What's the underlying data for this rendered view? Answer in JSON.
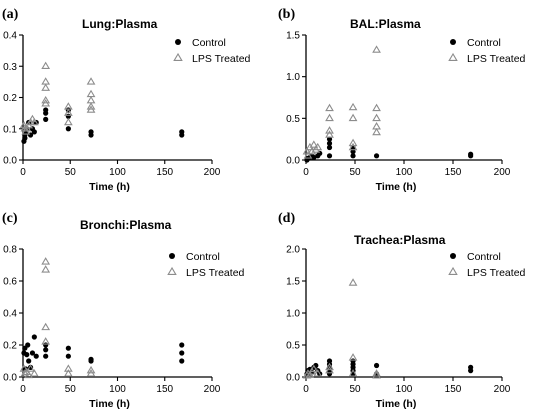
{
  "chart_data": [
    {
      "type": "scatter",
      "panel_letter": "(a)",
      "title": "Lung:Plasma",
      "xlabel": "Time (h)",
      "ylabel": "",
      "xlim": [
        0,
        200
      ],
      "ylim": [
        0,
        0.4
      ],
      "xticks": [
        0,
        50,
        100,
        150,
        200
      ],
      "yticks": [
        0.0,
        0.1,
        0.2,
        0.3,
        0.4
      ],
      "ytick_labels": [
        "0.0",
        "0.1",
        "0.2",
        "0.3",
        "0.4"
      ],
      "legend_position": "top-right",
      "series": [
        {
          "name": "Control",
          "marker": "filled-circle",
          "color": "#000000",
          "points": [
            [
              1,
              0.06
            ],
            [
              2,
              0.07
            ],
            [
              2,
              0.08
            ],
            [
              3,
              0.09
            ],
            [
              4,
              0.1
            ],
            [
              6,
              0.12
            ],
            [
              8,
              0.08
            ],
            [
              10,
              0.1
            ],
            [
              12,
              0.09
            ],
            [
              14,
              0.12
            ],
            [
              24,
              0.15
            ],
            [
              24,
              0.16
            ],
            [
              24,
              0.13
            ],
            [
              48,
              0.14
            ],
            [
              48,
              0.1
            ],
            [
              48,
              0.16
            ],
            [
              72,
              0.09
            ],
            [
              72,
              0.08
            ],
            [
              168,
              0.09
            ],
            [
              168,
              0.08
            ]
          ]
        },
        {
          "name": "LPS Treated",
          "marker": "open-triangle",
          "color": "#8c8c8c",
          "points": [
            [
              1,
              0.11
            ],
            [
              2,
              0.1
            ],
            [
              3,
              0.09
            ],
            [
              4,
              0.1
            ],
            [
              6,
              0.11
            ],
            [
              8,
              0.12
            ],
            [
              10,
              0.13
            ],
            [
              12,
              0.12
            ],
            [
              24,
              0.3
            ],
            [
              24,
              0.25
            ],
            [
              24,
              0.23
            ],
            [
              24,
              0.19
            ],
            [
              24,
              0.18
            ],
            [
              48,
              0.17
            ],
            [
              48,
              0.15
            ],
            [
              48,
              0.12
            ],
            [
              72,
              0.25
            ],
            [
              72,
              0.21
            ],
            [
              72,
              0.19
            ],
            [
              72,
              0.17
            ],
            [
              72,
              0.16
            ]
          ]
        }
      ]
    },
    {
      "type": "scatter",
      "panel_letter": "(b)",
      "title": "BAL:Plasma",
      "xlabel": "Time (h)",
      "ylabel": "",
      "xlim": [
        0,
        200
      ],
      "ylim": [
        0,
        1.5
      ],
      "xticks": [
        0,
        50,
        100,
        150,
        200
      ],
      "yticks": [
        0.0,
        0.5,
        1.0,
        1.5
      ],
      "ytick_labels": [
        "0.0",
        "0.5",
        "1.0",
        "1.5"
      ],
      "legend_position": "top-right",
      "series": [
        {
          "name": "Control",
          "marker": "filled-circle",
          "color": "#000000",
          "points": [
            [
              1,
              0.0
            ],
            [
              2,
              0.02
            ],
            [
              4,
              0.03
            ],
            [
              6,
              0.05
            ],
            [
              8,
              0.03
            ],
            [
              12,
              0.05
            ],
            [
              14,
              0.08
            ],
            [
              24,
              0.15
            ],
            [
              24,
              0.2
            ],
            [
              24,
              0.25
            ],
            [
              24,
              0.05
            ],
            [
              48,
              0.15
            ],
            [
              48,
              0.1
            ],
            [
              48,
              0.05
            ],
            [
              72,
              0.05
            ],
            [
              168,
              0.05
            ],
            [
              168,
              0.07
            ]
          ]
        },
        {
          "name": "LPS Treated",
          "marker": "open-triangle",
          "color": "#8c8c8c",
          "points": [
            [
              1,
              0.1
            ],
            [
              2,
              0.05
            ],
            [
              4,
              0.15
            ],
            [
              6,
              0.1
            ],
            [
              8,
              0.18
            ],
            [
              10,
              0.12
            ],
            [
              12,
              0.15
            ],
            [
              24,
              0.62
            ],
            [
              24,
              0.5
            ],
            [
              24,
              0.35
            ],
            [
              24,
              0.3
            ],
            [
              48,
              0.63
            ],
            [
              48,
              0.5
            ],
            [
              48,
              0.2
            ],
            [
              48,
              0.15
            ],
            [
              72,
              1.32
            ],
            [
              72,
              0.62
            ],
            [
              72,
              0.5
            ],
            [
              72,
              0.4
            ],
            [
              72,
              0.33
            ]
          ]
        }
      ]
    },
    {
      "type": "scatter",
      "panel_letter": "(c)",
      "title": "Bronchi:Plasma",
      "xlabel": "Time (h)",
      "ylabel": "",
      "xlim": [
        0,
        200
      ],
      "ylim": [
        0,
        0.8
      ],
      "xticks": [
        0,
        50,
        100,
        150,
        200
      ],
      "yticks": [
        0.0,
        0.2,
        0.4,
        0.6,
        0.8
      ],
      "ytick_labels": [
        "0.0",
        "0.2",
        "0.4",
        "0.6",
        "0.8"
      ],
      "legend_position": "top-right",
      "series": [
        {
          "name": "Control",
          "marker": "filled-circle",
          "color": "#000000",
          "points": [
            [
              1,
              0.15
            ],
            [
              2,
              0.18
            ],
            [
              3,
              0.05
            ],
            [
              4,
              0.14
            ],
            [
              5,
              0.2
            ],
            [
              6,
              0.1
            ],
            [
              8,
              0.06
            ],
            [
              10,
              0.15
            ],
            [
              12,
              0.25
            ],
            [
              14,
              0.13
            ],
            [
              24,
              0.17
            ],
            [
              24,
              0.13
            ],
            [
              24,
              0.2
            ],
            [
              48,
              0.18
            ],
            [
              48,
              0.13
            ],
            [
              72,
              0.11
            ],
            [
              72,
              0.1
            ],
            [
              168,
              0.2
            ],
            [
              168,
              0.15
            ],
            [
              168,
              0.1
            ]
          ]
        },
        {
          "name": "LPS Treated",
          "marker": "open-triangle",
          "color": "#8c8c8c",
          "points": [
            [
              1,
              0.05
            ],
            [
              2,
              0.02
            ],
            [
              4,
              0.03
            ],
            [
              6,
              0.01
            ],
            [
              8,
              0.05
            ],
            [
              12,
              0.02
            ],
            [
              24,
              0.72
            ],
            [
              24,
              0.67
            ],
            [
              24,
              0.31
            ],
            [
              24,
              0.22
            ],
            [
              48,
              0.05
            ],
            [
              48,
              0.02
            ],
            [
              72,
              0.04
            ],
            [
              72,
              0.02
            ]
          ]
        }
      ]
    },
    {
      "type": "scatter",
      "panel_letter": "(d)",
      "title": "Trachea:Plasma",
      "xlabel": "Time (h)",
      "ylabel": "",
      "xlim": [
        0,
        200
      ],
      "ylim": [
        0,
        2.0
      ],
      "xticks": [
        0,
        50,
        100,
        150,
        200
      ],
      "yticks": [
        0.0,
        0.5,
        1.0,
        1.5,
        2.0
      ],
      "ytick_labels": [
        "0.0",
        "0.5",
        "1.0",
        "1.5",
        "2.0"
      ],
      "legend_position": "top-right",
      "series": [
        {
          "name": "Control",
          "marker": "filled-circle",
          "color": "#000000",
          "points": [
            [
              1,
              0.05
            ],
            [
              2,
              0.1
            ],
            [
              3,
              0.02
            ],
            [
              4,
              0.12
            ],
            [
              6,
              0.08
            ],
            [
              8,
              0.15
            ],
            [
              10,
              0.18
            ],
            [
              12,
              0.1
            ],
            [
              14,
              0.05
            ],
            [
              24,
              0.25
            ],
            [
              24,
              0.2
            ],
            [
              24,
              0.15
            ],
            [
              24,
              0.1
            ],
            [
              24,
              0.05
            ],
            [
              48,
              0.25
            ],
            [
              48,
              0.2
            ],
            [
              48,
              0.15
            ],
            [
              48,
              0.1
            ],
            [
              48,
              0.05
            ],
            [
              72,
              0.18
            ],
            [
              72,
              0.05
            ],
            [
              168,
              0.15
            ],
            [
              168,
              0.1
            ]
          ]
        },
        {
          "name": "LPS Treated",
          "marker": "open-triangle",
          "color": "#8c8c8c",
          "points": [
            [
              1,
              0.02
            ],
            [
              2,
              0.05
            ],
            [
              4,
              0.03
            ],
            [
              6,
              0.08
            ],
            [
              8,
              0.12
            ],
            [
              12,
              0.05
            ],
            [
              24,
              0.1
            ],
            [
              24,
              0.15
            ],
            [
              48,
              1.47
            ],
            [
              48,
              0.3
            ],
            [
              48,
              0.05
            ],
            [
              72,
              0.05
            ],
            [
              72,
              0.02
            ]
          ]
        }
      ]
    }
  ]
}
